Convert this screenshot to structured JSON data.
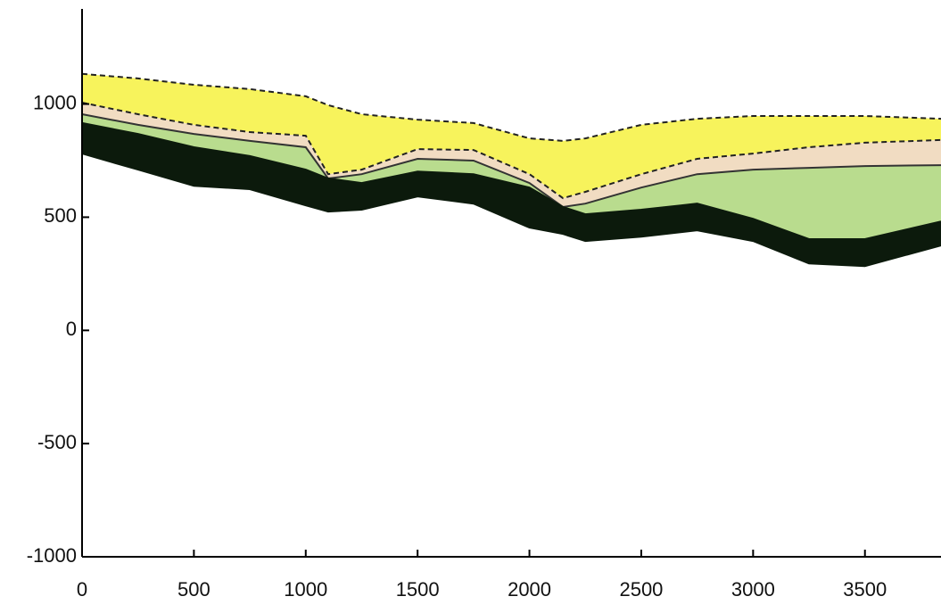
{
  "chart_data": {
    "type": "layers",
    "x": [
      0,
      250,
      500,
      750,
      1000,
      1100,
      1250,
      1500,
      1750,
      2000,
      2150,
      2250,
      2500,
      2750,
      3000,
      3250,
      3500,
      3840
    ],
    "series": [
      {
        "color": "#222222",
        "dashed": true,
        "values": [
          1133,
          1113,
          1085,
          1066,
          1034,
          995,
          955,
          931,
          916,
          848,
          837,
          848,
          908,
          935,
          947,
          947,
          947,
          935
        ]
      },
      {
        "color": "#222222",
        "dashed": true,
        "values": [
          1006,
          955,
          908,
          876,
          860,
          690,
          710,
          801,
          797,
          690,
          584,
          612,
          690,
          758,
          781,
          809,
          829,
          841
        ]
      },
      {
        "color": "#333333",
        "dashed": false,
        "values": [
          955,
          908,
          868,
          837,
          809,
          671,
          690,
          758,
          750,
          651,
          545,
          560,
          631,
          690,
          710,
          718,
          726,
          730
        ]
      },
      {
        "color": "#0c1a0c",
        "dashed": false,
        "values": [
          916,
          868,
          809,
          770,
          710,
          671,
          651,
          702,
          690,
          631,
          545,
          513,
          533,
          560,
          493,
          403,
          403,
          481
        ]
      },
      {
        "color": "#0c1a0c",
        "dashed": false,
        "values": [
          781,
          710,
          639,
          624,
          552,
          525,
          533,
          592,
          560,
          454,
          426,
          395,
          414,
          442,
          395,
          296,
          284,
          375
        ]
      }
    ],
    "layer_colors": [
      "#f7f35c",
      "#f1dcc2",
      "#b9dc8e",
      "#0c1a0c"
    ],
    "xlim": [
      0,
      3840
    ],
    "ylim": [
      -1000,
      1420
    ],
    "xticks": [
      0,
      500,
      1000,
      1500,
      2000,
      2500,
      3000,
      3500
    ],
    "yticks": [
      -1000,
      -500,
      0,
      500,
      1000
    ]
  }
}
